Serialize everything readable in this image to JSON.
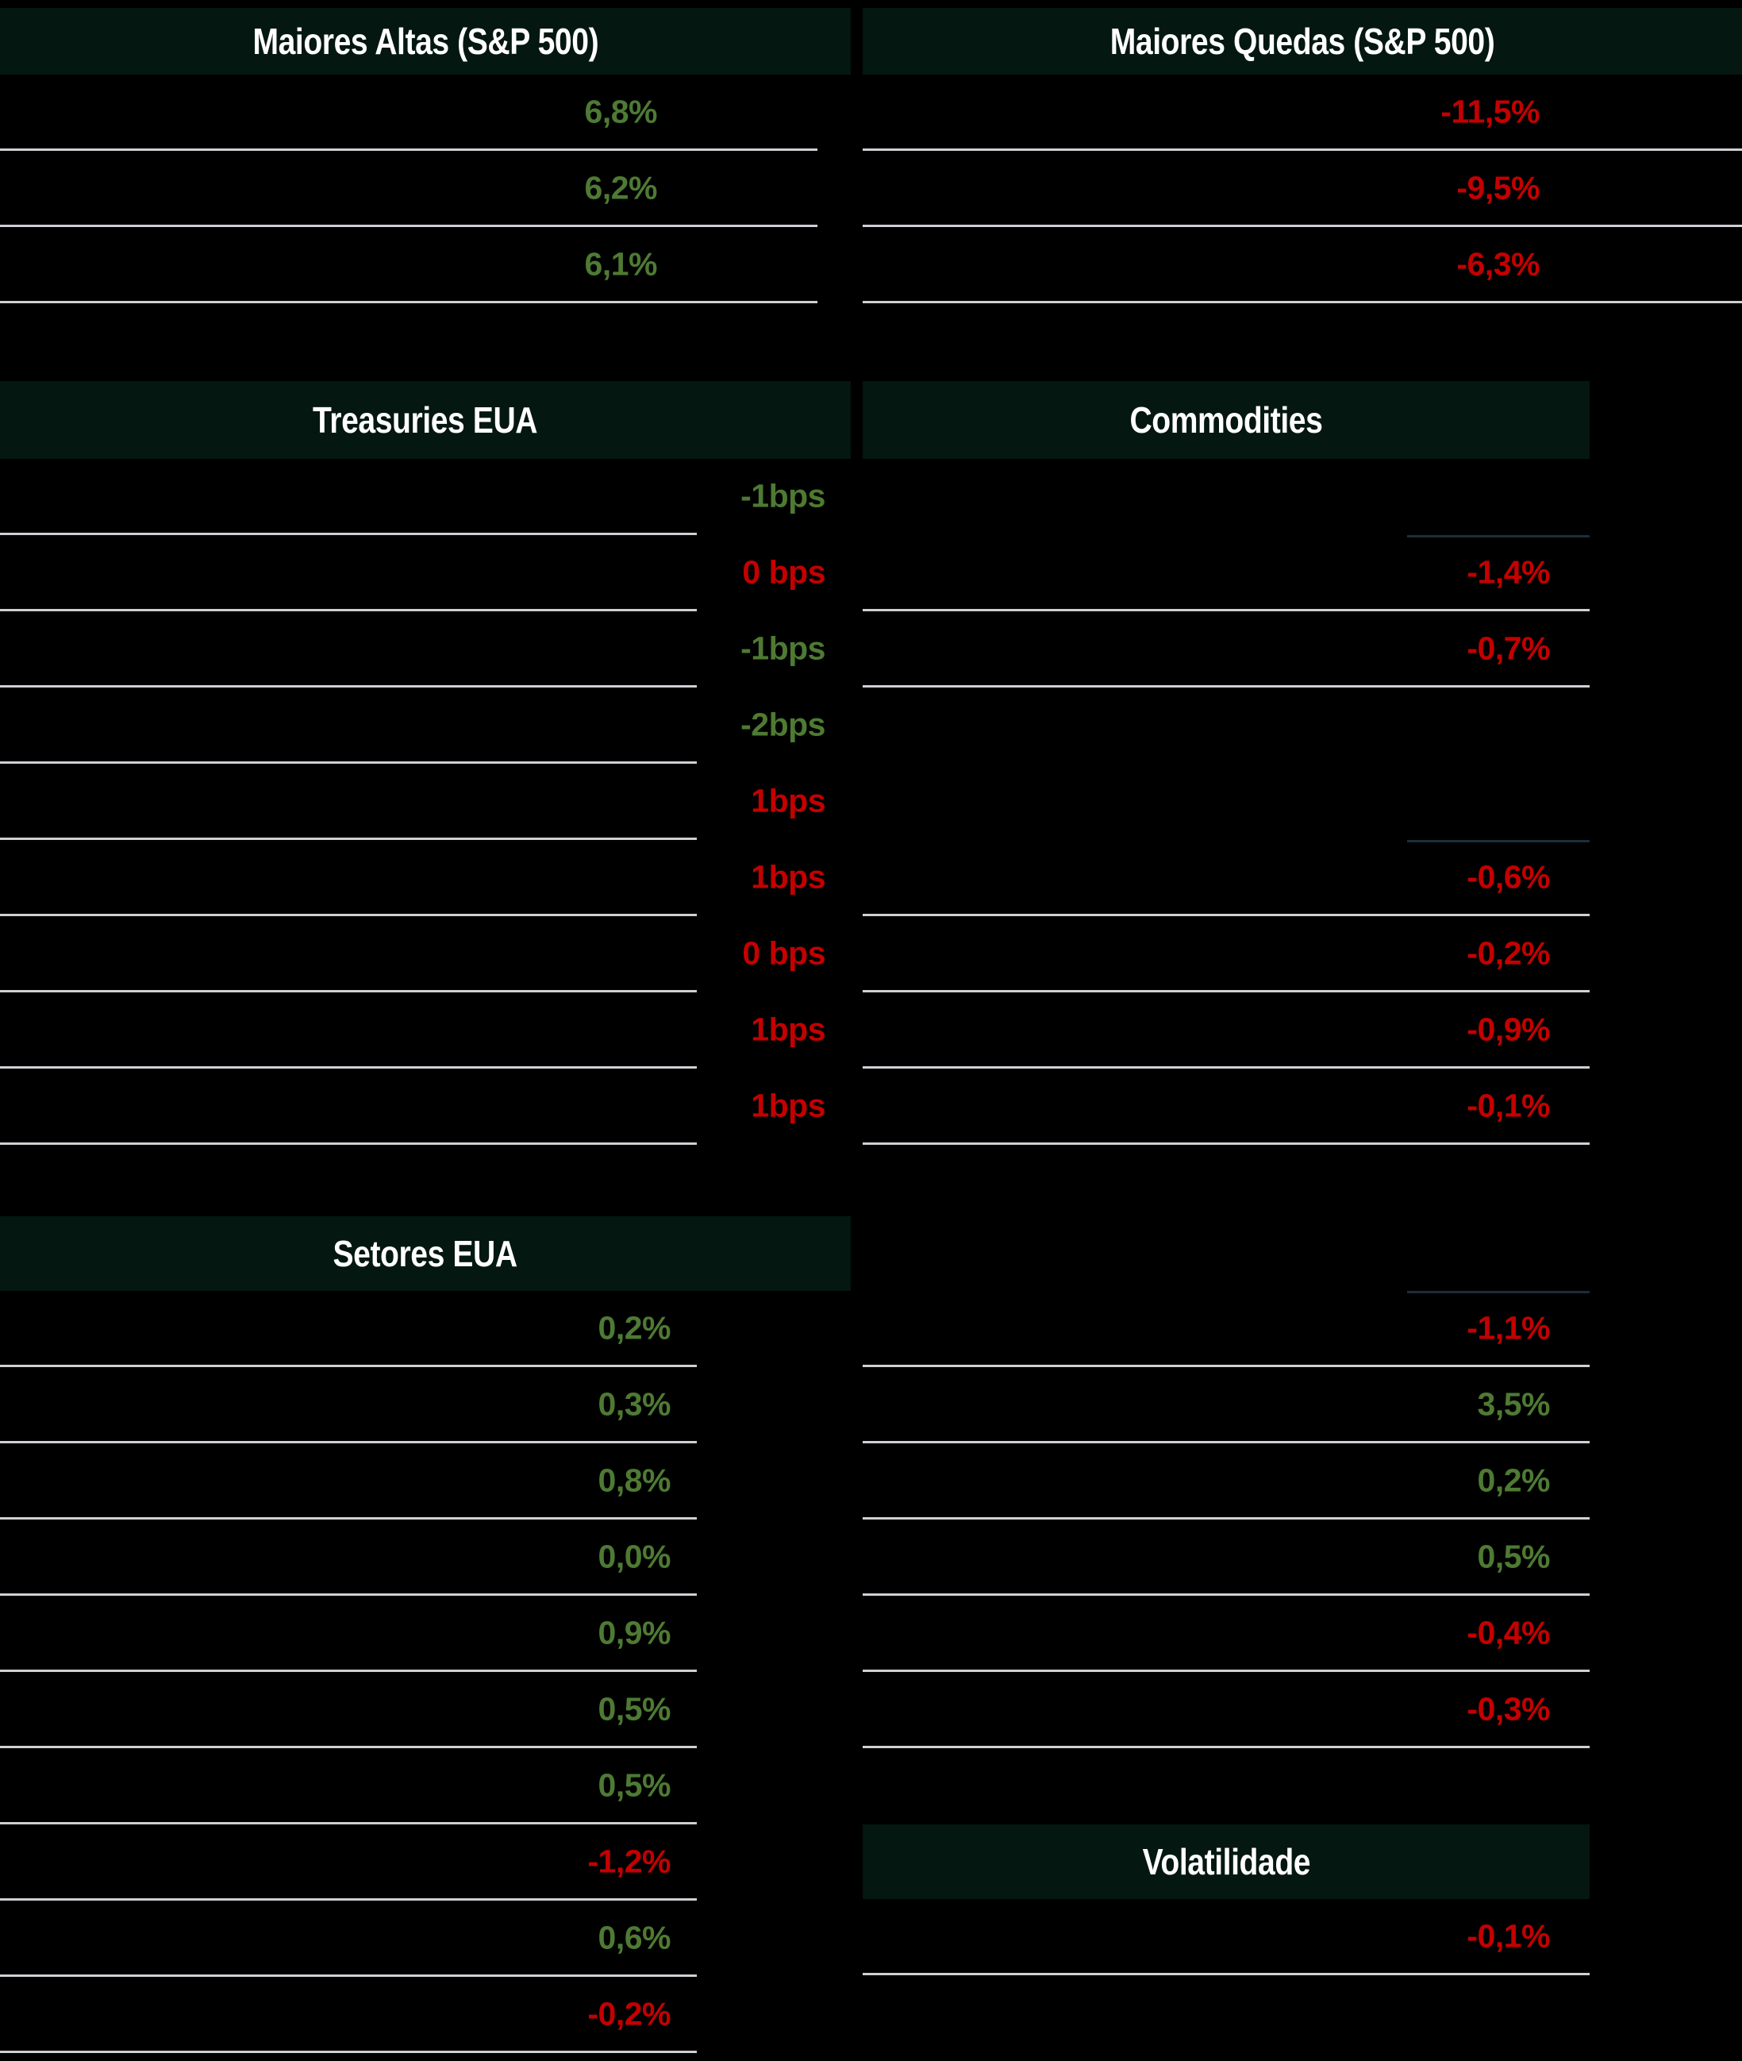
{
  "meta": {
    "language": "pt-BR",
    "description_colors": {
      "positive_value": "#4e7a33",
      "negative_value": "#c40000",
      "header_background": "#041710",
      "header_text": "#ffffff",
      "row_separator": "#cfcfd4",
      "value_column_divider": "#1b2f3a",
      "page_background": "#000000"
    }
  },
  "sections": {
    "top_left": {
      "title": "Maiores Altas (S&P 500)",
      "rows": [
        {
          "value": "6,8%",
          "trend": "up"
        },
        {
          "value": "6,2%",
          "trend": "up"
        },
        {
          "value": "6,1%",
          "trend": "up"
        }
      ]
    },
    "top_right": {
      "title": "Maiores Quedas (S&P 500)",
      "rows": [
        {
          "value": "-11,5%",
          "trend": "down"
        },
        {
          "value": "-9,5%",
          "trend": "down"
        },
        {
          "value": "-6,3%",
          "trend": "down"
        }
      ]
    },
    "treasuries": {
      "title": "Treasuries EUA",
      "rows": [
        {
          "value": "-1bps",
          "trend": "up"
        },
        {
          "value": "0 bps",
          "trend": "down"
        },
        {
          "value": "-1bps",
          "trend": "up"
        },
        {
          "value": "-2bps",
          "trend": "up"
        },
        {
          "value": "1bps",
          "trend": "down"
        },
        {
          "value": "1bps",
          "trend": "down"
        },
        {
          "value": "0 bps",
          "trend": "down"
        },
        {
          "value": "1bps",
          "trend": "down"
        },
        {
          "value": "1bps",
          "trend": "down"
        }
      ]
    },
    "commodities": {
      "title": "Commodities",
      "rows": [
        {
          "value": "",
          "trend": ""
        },
        {
          "value": "-1,4%",
          "trend": "down"
        },
        {
          "value": "-0,7%",
          "trend": "down"
        },
        {
          "value": "",
          "trend": ""
        },
        {
          "value": "",
          "trend": ""
        },
        {
          "value": "-0,6%",
          "trend": "down"
        },
        {
          "value": "-0,2%",
          "trend": "down"
        },
        {
          "value": "-0,9%",
          "trend": "down"
        },
        {
          "value": "-0,1%",
          "trend": "down"
        }
      ]
    },
    "setores": {
      "title": "Setores EUA",
      "rows": [
        {
          "value": "0,2%",
          "trend": "up"
        },
        {
          "value": "0,3%",
          "trend": "up"
        },
        {
          "value": "0,8%",
          "trend": "up"
        },
        {
          "value": "0,0%",
          "trend": "up"
        },
        {
          "value": "0,9%",
          "trend": "up"
        },
        {
          "value": "0,5%",
          "trend": "up"
        },
        {
          "value": "0,5%",
          "trend": "up"
        },
        {
          "value": "-1,2%",
          "trend": "down"
        },
        {
          "value": "0,6%",
          "trend": "up"
        },
        {
          "value": "-0,2%",
          "trend": "down"
        }
      ]
    },
    "fx": {
      "title": "",
      "rows": [
        {
          "value": "-1,1%",
          "trend": "down"
        },
        {
          "value": "3,5%",
          "trend": "up"
        },
        {
          "value": "0,2%",
          "trend": "up"
        },
        {
          "value": "0,5%",
          "trend": "up"
        },
        {
          "value": "-0,4%",
          "trend": "down"
        },
        {
          "value": "-0,3%",
          "trend": "down"
        }
      ]
    },
    "volatilidade": {
      "title": "Volatilidade",
      "rows": [
        {
          "value": "-0,1%",
          "trend": "down"
        }
      ]
    }
  }
}
